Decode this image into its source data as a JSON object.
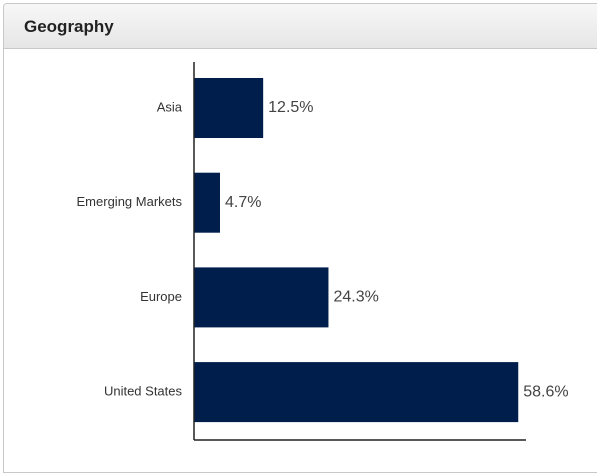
{
  "chart_data": {
    "type": "bar",
    "orientation": "horizontal",
    "title": "Geography",
    "categories": [
      "Asia",
      "Emerging Markets",
      "Europe",
      "United States"
    ],
    "values": [
      12.5,
      4.7,
      24.3,
      58.6
    ],
    "value_labels": [
      "12.5%",
      "4.7%",
      "24.3%",
      "58.6%"
    ],
    "color": "#001e4c",
    "xlim": [
      0,
      60
    ]
  }
}
